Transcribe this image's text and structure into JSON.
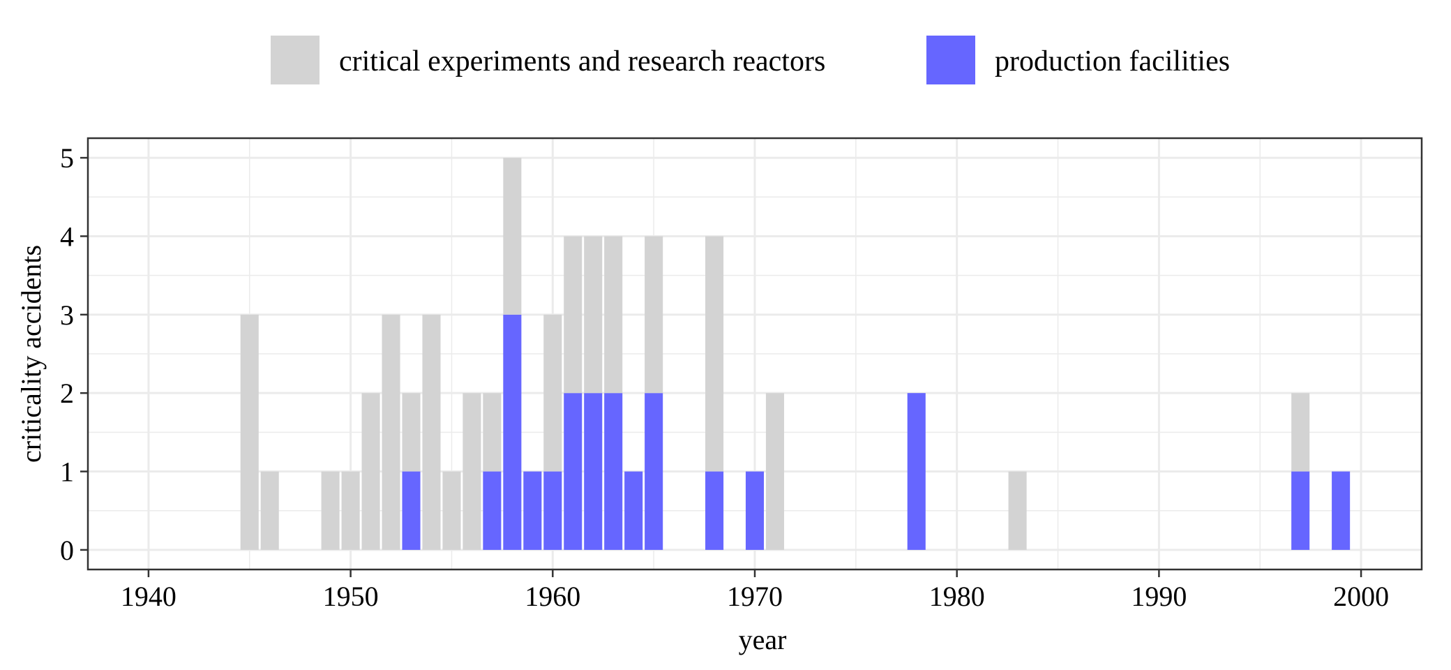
{
  "chart_data": {
    "type": "bar",
    "stacked": true,
    "title": "",
    "xlabel": "year",
    "ylabel": "criticality accidents",
    "xlim": [
      1937,
      2003
    ],
    "ylim": [
      -0.25,
      5.25
    ],
    "xticks": [
      1940,
      1950,
      1960,
      1970,
      1980,
      1990,
      2000
    ],
    "yticks": [
      0,
      1,
      2,
      3,
      4,
      5
    ],
    "grid": true,
    "legend_position": "top",
    "x": [
      1945,
      1946,
      1949,
      1950,
      1951,
      1952,
      1953,
      1954,
      1955,
      1956,
      1957,
      1958,
      1959,
      1960,
      1961,
      1962,
      1963,
      1964,
      1965,
      1968,
      1970,
      1971,
      1978,
      1983,
      1997,
      1999
    ],
    "series": [
      {
        "name": "production facilities",
        "color": "#6666ff",
        "values": [
          0,
          0,
          0,
          0,
          0,
          0,
          1,
          0,
          0,
          0,
          1,
          3,
          1,
          1,
          2,
          2,
          2,
          1,
          2,
          1,
          1,
          0,
          2,
          0,
          1,
          1
        ]
      },
      {
        "name": "critical experiments and research reactors",
        "color": "#d3d3d3",
        "values": [
          3,
          1,
          1,
          1,
          2,
          3,
          1,
          3,
          1,
          2,
          1,
          2,
          0,
          2,
          2,
          2,
          2,
          0,
          2,
          3,
          0,
          2,
          0,
          1,
          1,
          0
        ]
      }
    ],
    "legend_order": [
      "critical experiments and research reactors",
      "production facilities"
    ]
  }
}
